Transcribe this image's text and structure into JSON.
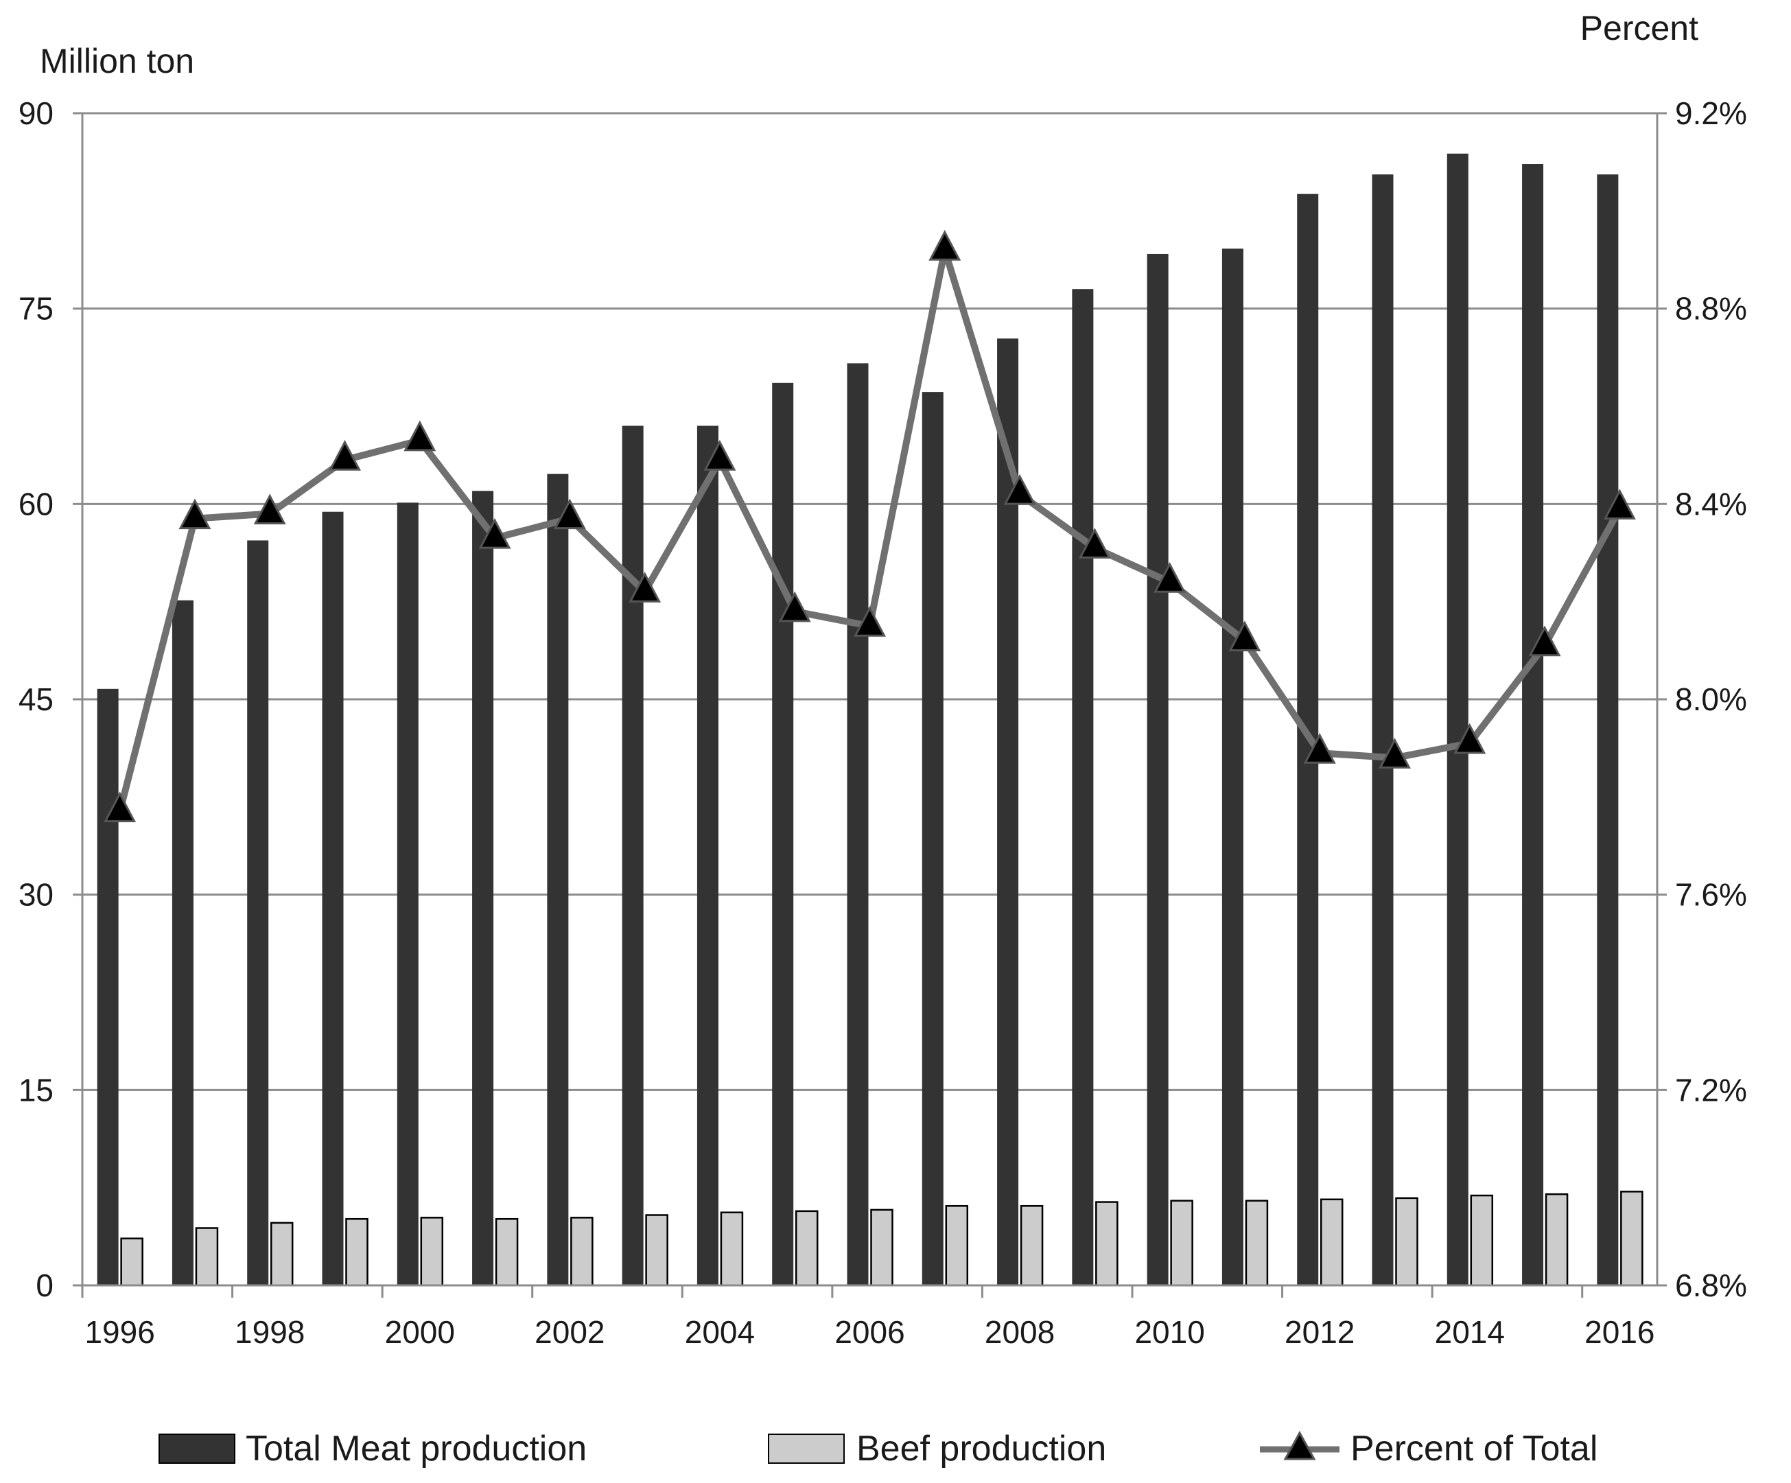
{
  "chart_data": {
    "type": "bar",
    "categories": [
      "1996",
      "1997",
      "1998",
      "1999",
      "2000",
      "2001",
      "2002",
      "2003",
      "2004",
      "2005",
      "2006",
      "2007",
      "2008",
      "2009",
      "2010",
      "2011",
      "2012",
      "2013",
      "2014",
      "2015",
      "2016"
    ],
    "x_tick_labels": [
      "1996",
      "1998",
      "2000",
      "2002",
      "2004",
      "2006",
      "2008",
      "2010",
      "2012",
      "2014",
      "2016"
    ],
    "left_axis": {
      "title": "Million ton",
      "ylim": [
        0,
        90
      ],
      "ticks": [
        0,
        15,
        30,
        45,
        60,
        75,
        90
      ],
      "tick_labels": [
        "0",
        "15",
        "30",
        "45",
        "60",
        "75",
        "90"
      ]
    },
    "right_axis": {
      "title": "Percent",
      "ylim": [
        6.8,
        9.2
      ],
      "ticks": [
        6.8,
        7.2,
        7.6,
        8.0,
        8.4,
        8.8,
        9.2
      ],
      "tick_labels": [
        "6.8%",
        "7.2%",
        "7.6%",
        "8.0%",
        "8.4%",
        "8.8%",
        "9.2%"
      ]
    },
    "grid": true,
    "legend_position": "bottom",
    "series": [
      {
        "name": "Total Meat production",
        "type": "bar",
        "axis": "left",
        "color": "#333333",
        "values": [
          45.8,
          52.6,
          57.2,
          59.4,
          60.1,
          61.0,
          62.3,
          66.0,
          66.0,
          69.3,
          70.8,
          68.6,
          72.7,
          76.5,
          79.2,
          79.6,
          83.8,
          85.3,
          86.9,
          86.1,
          85.3
        ]
      },
      {
        "name": "Beef production",
        "type": "bar",
        "axis": "left",
        "color": "#cccccc",
        "values": [
          3.6,
          4.4,
          4.8,
          5.1,
          5.2,
          5.1,
          5.2,
          5.4,
          5.6,
          5.7,
          5.8,
          6.1,
          6.1,
          6.4,
          6.5,
          6.5,
          6.6,
          6.7,
          6.9,
          7.0,
          7.2
        ]
      },
      {
        "name": "Percent of Total",
        "type": "line",
        "axis": "right",
        "color": "#707070",
        "marker": "triangle",
        "values": [
          7.77,
          8.37,
          8.38,
          8.49,
          8.53,
          8.33,
          8.37,
          8.22,
          8.49,
          8.18,
          8.15,
          8.92,
          8.42,
          8.31,
          8.24,
          8.12,
          7.89,
          7.88,
          7.91,
          8.11,
          8.39
        ]
      }
    ]
  }
}
